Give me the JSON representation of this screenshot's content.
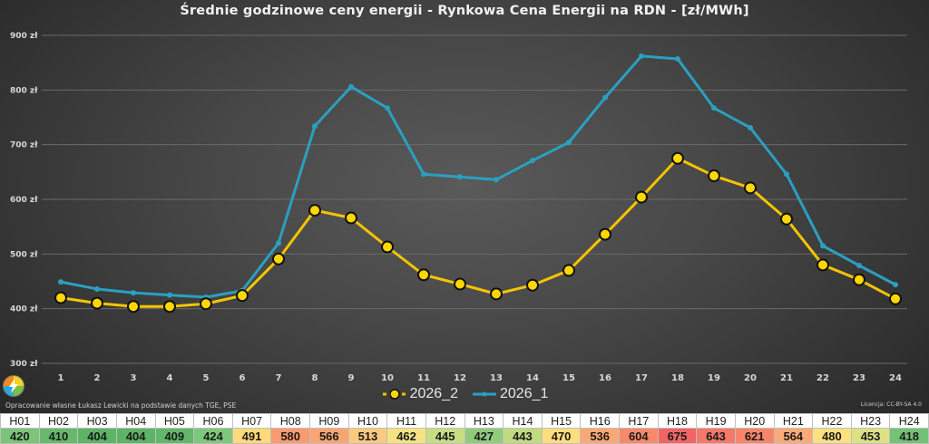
{
  "chart_data": {
    "type": "line",
    "title": "Średnie godzinowe ceny energii - Rynkowa Cena Energii na RDN - [zł/MWh]",
    "xlabel": "",
    "ylabel": "",
    "ylim": [
      300,
      900
    ],
    "yticks": [
      "300 zł",
      "400 zł",
      "500 zł",
      "600 zł",
      "700 zł",
      "800 zł",
      "900 zł"
    ],
    "grid": true,
    "legend_position": "bottom",
    "x": [
      1,
      2,
      3,
      4,
      5,
      6,
      7,
      8,
      9,
      10,
      11,
      12,
      13,
      14,
      15,
      16,
      17,
      18,
      19,
      20,
      21,
      22,
      23,
      24
    ],
    "series": [
      {
        "name": "2026_2",
        "color": "#f5c400",
        "marker": "circle-large",
        "values": [
          420,
          410,
          404,
          404,
          409,
          424,
          491,
          580,
          566,
          513,
          462,
          445,
          427,
          443,
          470,
          536,
          604,
          675,
          643,
          621,
          564,
          480,
          453,
          418
        ]
      },
      {
        "name": "2026_1",
        "color": "#2aa0c0",
        "marker": "circle-small",
        "values": [
          449,
          436,
          429,
          425,
          421,
          433,
          520,
          734,
          806,
          767,
          646,
          641,
          636,
          671,
          704,
          786,
          862,
          857,
          767,
          731,
          646,
          515,
          479,
          444
        ]
      }
    ]
  },
  "legend": {
    "items": [
      {
        "label": "2026_2"
      },
      {
        "label": "2026_1"
      }
    ]
  },
  "footer": {
    "source": "Opracowanie własne Łukasz Lewicki na podstawie danych TGE, PSE",
    "license": "Licencja: CC-BY-SA 4.0"
  },
  "table": {
    "headers": [
      "H01",
      "H02",
      "H03",
      "H04",
      "H05",
      "H06",
      "H07",
      "H08",
      "H09",
      "H10",
      "H11",
      "H12",
      "H13",
      "H14",
      "H15",
      "H16",
      "H17",
      "H18",
      "H19",
      "H20",
      "H21",
      "H22",
      "H23",
      "H24"
    ],
    "values": [
      "420",
      "410",
      "404",
      "404",
      "409",
      "424",
      "491",
      "580",
      "566",
      "513",
      "462",
      "445",
      "427",
      "443",
      "470",
      "536",
      "604",
      "675",
      "643",
      "621",
      "564",
      "480",
      "453",
      "418"
    ],
    "colors": [
      "#7cc47a",
      "#67b96c",
      "#5db466",
      "#5db466",
      "#63b76a",
      "#7ec87b",
      "#ffd97a",
      "#f99a70",
      "#f9a573",
      "#fdc97e",
      "#f5e382",
      "#c7dd82",
      "#90cb7c",
      "#c0da81",
      "#ffdd7d",
      "#fba876",
      "#f8896a",
      "#f26466",
      "#f57869",
      "#f7856a",
      "#fba977",
      "#fde17e",
      "#dde183",
      "#74c178"
    ]
  },
  "colors": {
    "series_2026_2": "#f5c400",
    "series_2026_1": "#2aa0c0"
  }
}
